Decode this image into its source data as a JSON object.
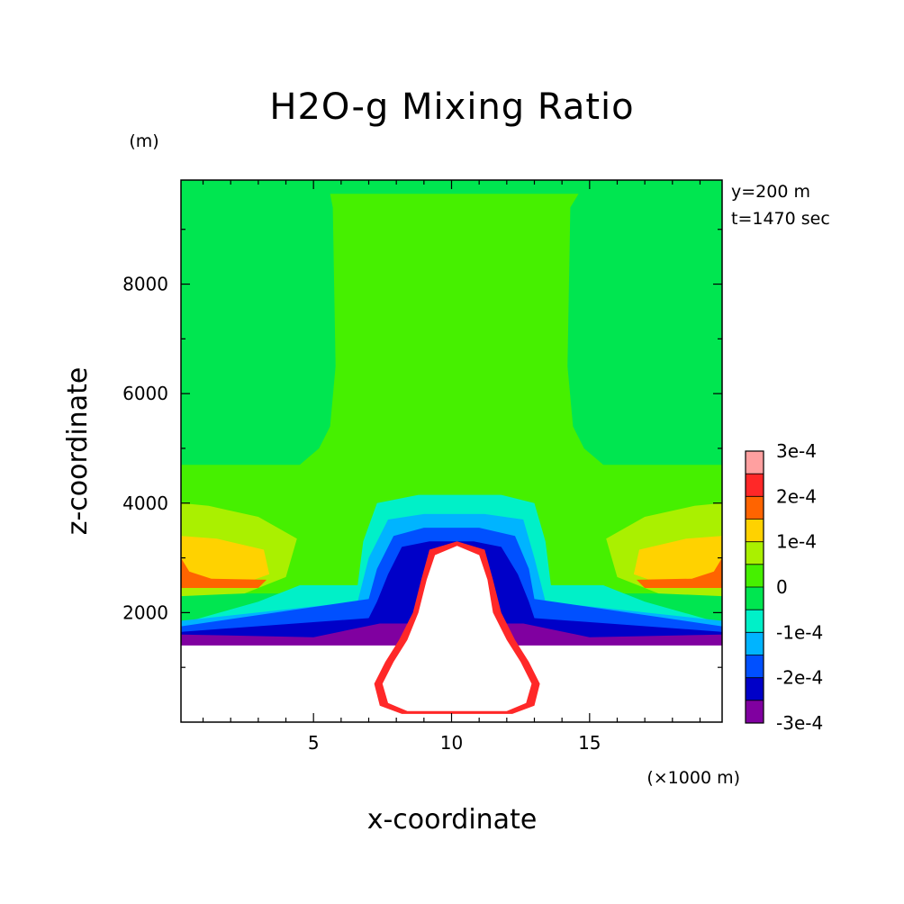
{
  "chart_data": {
    "type": "heatmap",
    "title": "H2O-g Mixing Ratio",
    "xlabel": "x-coordinate",
    "ylabel": "z-coordinate",
    "x_unit": "(×1000 m)",
    "y_unit": "(m)",
    "xlim": [
      0.2,
      19.8
    ],
    "ylim": [
      0,
      9900
    ],
    "x_ticks": [
      5,
      10,
      15
    ],
    "y_ticks": [
      2000,
      4000,
      6000,
      8000
    ],
    "annotations": [
      "y=200 m",
      "t=1470 sec"
    ],
    "colorbar": {
      "labels": [
        "3e-4",
        "2e-4",
        "1e-4",
        "0",
        "-1e-4",
        "-2e-4",
        "-3e-4"
      ],
      "levels": [
        {
          "min": -0.0003,
          "max": -0.00025,
          "color": "#8000a0"
        },
        {
          "min": -0.00025,
          "max": -0.0002,
          "color": "#0000c8"
        },
        {
          "min": -0.0002,
          "max": -0.00015,
          "color": "#0050ff"
        },
        {
          "min": -0.00015,
          "max": -0.0001,
          "color": "#00b4ff"
        },
        {
          "min": -0.0001,
          "max": -5e-05,
          "color": "#00f0c8"
        },
        {
          "min": -5e-05,
          "max": 0,
          "color": "#00e650"
        },
        {
          "min": 0,
          "max": 5e-05,
          "color": "#46f000"
        },
        {
          "min": 5e-05,
          "max": 0.0001,
          "color": "#aaf000"
        },
        {
          "min": 0.0001,
          "max": 0.00015,
          "color": "#ffd200"
        },
        {
          "min": 0.00015,
          "max": 0.0002,
          "color": "#ff6400"
        },
        {
          "min": 0.0002,
          "max": 0.00025,
          "color": "#ff2828"
        },
        {
          "min": 0.00025,
          "max": 0.0003,
          "color": "#ffa0a0"
        }
      ]
    },
    "regions": [
      {
        "name": "upper-background",
        "color": "#00e650",
        "points": [
          [
            0.2,
            9900
          ],
          [
            19.8,
            9900
          ],
          [
            19.8,
            1500
          ],
          [
            0.2,
            1500
          ]
        ]
      },
      {
        "name": "central-column",
        "color": "#46f000",
        "points": [
          [
            5.6,
            9650
          ],
          [
            14.6,
            9650
          ],
          [
            14.3,
            9400
          ],
          [
            14.2,
            6500
          ],
          [
            14.4,
            5400
          ],
          [
            14.8,
            5000
          ],
          [
            15.5,
            4700
          ],
          [
            19.8,
            4700
          ],
          [
            19.8,
            2300
          ],
          [
            0.2,
            2300
          ],
          [
            0.2,
            4700
          ],
          [
            4.5,
            4700
          ],
          [
            5.2,
            5000
          ],
          [
            5.6,
            5400
          ],
          [
            5.8,
            6500
          ],
          [
            5.7,
            9400
          ]
        ]
      },
      {
        "name": "lower-layer-green",
        "color": "#00e650",
        "points": [
          [
            0.2,
            2350
          ],
          [
            19.8,
            2350
          ],
          [
            19.8,
            1600
          ],
          [
            0.2,
            1600
          ]
        ]
      },
      {
        "name": "left-warm-yellowgreen",
        "color": "#aaf000",
        "points": [
          [
            0.2,
            4000
          ],
          [
            1.2,
            3950
          ],
          [
            3.0,
            3750
          ],
          [
            4.4,
            3350
          ],
          [
            4.0,
            2650
          ],
          [
            2.5,
            2350
          ],
          [
            0.2,
            2300
          ]
        ]
      },
      {
        "name": "right-warm-yellowgreen",
        "color": "#aaf000",
        "points": [
          [
            19.8,
            4000
          ],
          [
            18.8,
            3950
          ],
          [
            17.0,
            3750
          ],
          [
            15.6,
            3350
          ],
          [
            16.0,
            2650
          ],
          [
            17.5,
            2350
          ],
          [
            19.8,
            2300
          ]
        ]
      },
      {
        "name": "left-warm-yellow",
        "color": "#ffd200",
        "points": [
          [
            0.2,
            3400
          ],
          [
            1.5,
            3350
          ],
          [
            3.2,
            3150
          ],
          [
            3.4,
            2700
          ],
          [
            2.0,
            2450
          ],
          [
            0.2,
            2500
          ]
        ]
      },
      {
        "name": "right-warm-yellow",
        "color": "#ffd200",
        "points": [
          [
            19.8,
            3400
          ],
          [
            18.5,
            3350
          ],
          [
            16.8,
            3150
          ],
          [
            16.6,
            2700
          ],
          [
            18.0,
            2450
          ],
          [
            19.8,
            2500
          ]
        ]
      },
      {
        "name": "left-warm-orange",
        "color": "#ff6400",
        "points": [
          [
            0.2,
            3000
          ],
          [
            0.5,
            2750
          ],
          [
            1.3,
            2620
          ],
          [
            3.3,
            2600
          ],
          [
            3.0,
            2450
          ],
          [
            0.2,
            2450
          ]
        ]
      },
      {
        "name": "right-warm-orange",
        "color": "#ff6400",
        "points": [
          [
            19.8,
            3000
          ],
          [
            19.5,
            2750
          ],
          [
            18.7,
            2620
          ],
          [
            16.7,
            2600
          ],
          [
            17.0,
            2450
          ],
          [
            19.8,
            2450
          ]
        ]
      },
      {
        "name": "plume-cyan-outer",
        "color": "#00f0c8",
        "points": [
          [
            7.3,
            4000
          ],
          [
            8.8,
            4150
          ],
          [
            10.2,
            4150
          ],
          [
            11.8,
            4150
          ],
          [
            13.0,
            4000
          ],
          [
            13.4,
            3300
          ],
          [
            13.6,
            2500
          ],
          [
            15.5,
            2500
          ],
          [
            17.0,
            2200
          ],
          [
            19.8,
            1800
          ],
          [
            19.8,
            1600
          ],
          [
            0.2,
            1600
          ],
          [
            0.2,
            1800
          ],
          [
            3.0,
            2200
          ],
          [
            4.5,
            2500
          ],
          [
            6.6,
            2500
          ],
          [
            6.8,
            3300
          ]
        ]
      },
      {
        "name": "plume-lightblue",
        "color": "#00b4ff",
        "points": [
          [
            7.7,
            3700
          ],
          [
            9.0,
            3800
          ],
          [
            11.2,
            3800
          ],
          [
            12.6,
            3700
          ],
          [
            13.0,
            3000
          ],
          [
            13.4,
            2200
          ],
          [
            19.8,
            1850
          ],
          [
            19.8,
            1650
          ],
          [
            0.2,
            1650
          ],
          [
            0.2,
            1850
          ],
          [
            6.6,
            2200
          ],
          [
            7.0,
            3000
          ]
        ]
      },
      {
        "name": "plume-blue",
        "color": "#0050ff",
        "points": [
          [
            7.9,
            3400
          ],
          [
            9.0,
            3550
          ],
          [
            11.0,
            3550
          ],
          [
            12.3,
            3400
          ],
          [
            12.8,
            2800
          ],
          [
            13.0,
            2250
          ],
          [
            19.8,
            1750
          ],
          [
            19.8,
            1650
          ],
          [
            0.2,
            1650
          ],
          [
            0.2,
            1750
          ],
          [
            7.0,
            2250
          ],
          [
            7.3,
            2800
          ]
        ]
      },
      {
        "name": "plume-darkblue",
        "color": "#0000c8",
        "points": [
          [
            8.2,
            3200
          ],
          [
            9.2,
            3300
          ],
          [
            10.8,
            3300
          ],
          [
            11.8,
            3200
          ],
          [
            12.4,
            2700
          ],
          [
            12.8,
            2200
          ],
          [
            13.0,
            1900
          ],
          [
            19.8,
            1650
          ],
          [
            19.8,
            1450
          ],
          [
            0.2,
            1450
          ],
          [
            0.2,
            1650
          ],
          [
            7.0,
            1900
          ],
          [
            7.3,
            2200
          ],
          [
            7.7,
            2700
          ]
        ]
      },
      {
        "name": "base-purple",
        "color": "#8000a0",
        "points": [
          [
            0.2,
            1600
          ],
          [
            5.0,
            1550
          ],
          [
            7.4,
            1800
          ],
          [
            12.6,
            1800
          ],
          [
            15.0,
            1550
          ],
          [
            19.8,
            1600
          ],
          [
            19.8,
            1400
          ],
          [
            0.2,
            1400
          ]
        ]
      },
      {
        "name": "core-red",
        "color": "#ff2828",
        "points": [
          [
            9.2,
            3150
          ],
          [
            10.2,
            3300
          ],
          [
            11.2,
            3150
          ],
          [
            11.5,
            2600
          ],
          [
            11.8,
            2000
          ],
          [
            12.3,
            1500
          ],
          [
            12.8,
            1100
          ],
          [
            13.2,
            700
          ],
          [
            13.0,
            300
          ],
          [
            12.2,
            150
          ],
          [
            8.2,
            150
          ],
          [
            7.4,
            300
          ],
          [
            7.2,
            700
          ],
          [
            7.6,
            1100
          ],
          [
            8.1,
            1500
          ],
          [
            8.6,
            2000
          ],
          [
            8.9,
            2600
          ]
        ]
      },
      {
        "name": "core-white",
        "color": "#ffffff",
        "points": [
          [
            9.4,
            3050
          ],
          [
            10.2,
            3220
          ],
          [
            11.0,
            3050
          ],
          [
            11.3,
            2600
          ],
          [
            11.5,
            2000
          ],
          [
            12.0,
            1500
          ],
          [
            12.5,
            1100
          ],
          [
            12.9,
            700
          ],
          [
            12.7,
            350
          ],
          [
            12.0,
            200
          ],
          [
            8.4,
            200
          ],
          [
            7.7,
            350
          ],
          [
            7.5,
            700
          ],
          [
            7.9,
            1100
          ],
          [
            8.4,
            1500
          ],
          [
            8.8,
            2000
          ],
          [
            9.1,
            2600
          ]
        ]
      },
      {
        "name": "lower-white-left",
        "color": "#ffffff",
        "points": [
          [
            0.2,
            1350
          ],
          [
            4.2,
            1350
          ],
          [
            6.0,
            1300
          ],
          [
            6.8,
            1100
          ],
          [
            6.0,
            900
          ],
          [
            5.5,
            700
          ],
          [
            6.5,
            450
          ],
          [
            6.8,
            250
          ],
          [
            4.5,
            50
          ],
          [
            0.2,
            50
          ]
        ]
      },
      {
        "name": "lower-white-right",
        "color": "#ffffff",
        "points": [
          [
            19.8,
            1350
          ],
          [
            15.8,
            1350
          ],
          [
            14.0,
            1300
          ],
          [
            13.2,
            1100
          ],
          [
            14.0,
            900
          ],
          [
            14.5,
            700
          ],
          [
            13.5,
            450
          ],
          [
            13.2,
            250
          ],
          [
            15.5,
            50
          ],
          [
            19.8,
            50
          ]
        ]
      },
      {
        "name": "lower-edge-white",
        "color": "#ffffff",
        "points": [
          [
            0.2,
            0
          ],
          [
            19.8,
            0
          ],
          [
            19.8,
            50
          ],
          [
            0.2,
            50
          ]
        ]
      }
    ],
    "grid": false
  }
}
